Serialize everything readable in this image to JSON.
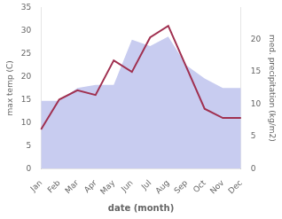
{
  "chart_data": {
    "type": "line",
    "categories": [
      "Jan",
      "Feb",
      "Mar",
      "Apr",
      "May",
      "Jun",
      "Jul",
      "Aug",
      "Sep",
      "Oct",
      "Nov",
      "Dec"
    ],
    "series": [
      {
        "type": "area",
        "color": "#c8ccf0",
        "axis": "y2",
        "values": [
          10.5,
          10.5,
          12.5,
          13.0,
          13.0,
          20.0,
          19.0,
          20.5,
          16.0,
          14.0,
          12.5,
          12.5
        ]
      },
      {
        "type": "line",
        "color": "#a03050",
        "values": [
          8.5,
          15.0,
          17.0,
          16.0,
          23.5,
          21.0,
          28.5,
          31.0,
          22.0,
          13.0,
          11.0,
          11.0
        ]
      }
    ],
    "xlabel": "date (month)",
    "ylabel": "max temp (C)",
    "y2label": "med. precipitation (kg/m2)",
    "ylim": [
      0,
      35
    ],
    "yticks": [
      0,
      5,
      10,
      15,
      20,
      25,
      30,
      35
    ],
    "y2lim": [
      0,
      25
    ],
    "y2ticks": [
      0,
      5,
      10,
      15,
      20
    ],
    "grid": false
  }
}
